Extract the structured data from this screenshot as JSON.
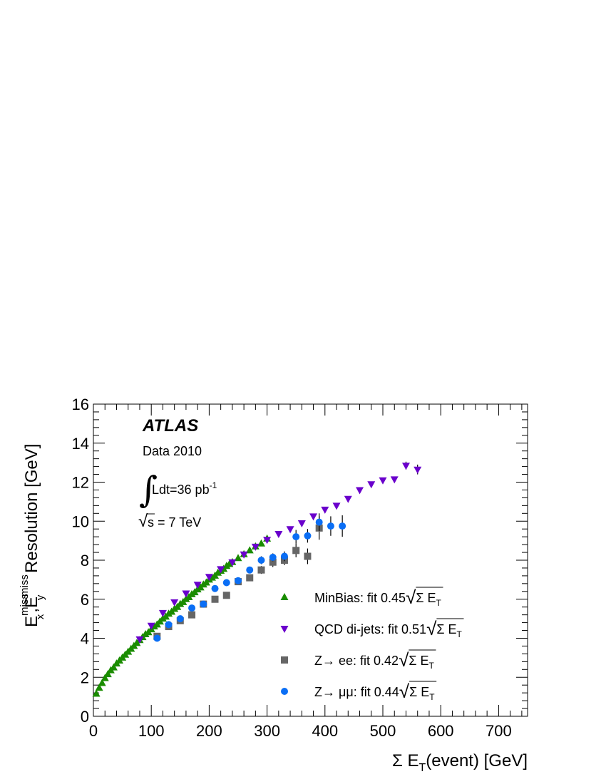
{
  "chart_data": {
    "type": "scatter",
    "xlim": [
      0,
      750
    ],
    "ylim": [
      0,
      16
    ],
    "x_ticks": [
      "0",
      "100",
      "200",
      "300",
      "400",
      "500",
      "600",
      "700"
    ],
    "y_ticks": [
      "0",
      "2",
      "4",
      "6",
      "8",
      "10",
      "12",
      "14",
      "16"
    ],
    "xlabel": {
      "pre": "Σ E",
      "sub": "T",
      "post": "(event)  [GeV]"
    },
    "ylabel": {
      "a": "E",
      "a_sup": "miss",
      "a_sub": "x",
      "comma": ",",
      "b": "E",
      "b_sup": "miss",
      "b_sub": "y",
      "post": " Resolution [GeV]"
    },
    "annotations": {
      "atlas": "ATLAS",
      "data_label": "Data 2010",
      "integral": "∫",
      "lumi": "Ldt=36 pb",
      "lumi_sup": "-1",
      "sqrt": "√",
      "energy": "s = 7 TeV"
    },
    "series": [
      {
        "name": "MinBias",
        "legend": {
          "text": "MinBias: fit 0.45",
          "sqrt": "√",
          "inner": "Σ E",
          "sub": "T"
        },
        "marker": "triangle-up",
        "color": "#1a8c00",
        "points": [
          [
            5,
            1.15
          ],
          [
            10,
            1.45
          ],
          [
            15,
            1.7
          ],
          [
            20,
            1.95
          ],
          [
            25,
            2.15
          ],
          [
            30,
            2.35
          ],
          [
            35,
            2.5
          ],
          [
            40,
            2.7
          ],
          [
            45,
            2.85
          ],
          [
            50,
            3.0
          ],
          [
            55,
            3.15
          ],
          [
            60,
            3.3
          ],
          [
            65,
            3.45
          ],
          [
            70,
            3.6
          ],
          [
            75,
            3.75
          ],
          [
            80,
            3.9
          ],
          [
            85,
            4.05
          ],
          [
            90,
            4.2
          ],
          [
            95,
            4.3
          ],
          [
            100,
            4.45
          ],
          [
            105,
            4.6
          ],
          [
            110,
            4.7
          ],
          [
            115,
            4.85
          ],
          [
            120,
            5.0
          ],
          [
            125,
            5.1
          ],
          [
            130,
            5.25
          ],
          [
            135,
            5.35
          ],
          [
            140,
            5.5
          ],
          [
            145,
            5.6
          ],
          [
            150,
            5.75
          ],
          [
            155,
            5.85
          ],
          [
            160,
            6.0
          ],
          [
            165,
            6.1
          ],
          [
            170,
            6.25
          ],
          [
            175,
            6.35
          ],
          [
            180,
            6.5
          ],
          [
            185,
            6.6
          ],
          [
            190,
            6.75
          ],
          [
            195,
            6.85
          ],
          [
            200,
            7.0
          ],
          [
            205,
            7.1
          ],
          [
            210,
            7.2
          ],
          [
            215,
            7.35
          ],
          [
            220,
            7.45
          ],
          [
            225,
            7.55
          ],
          [
            230,
            7.7
          ],
          [
            235,
            7.8
          ],
          [
            240,
            7.9
          ],
          [
            250,
            8.1
          ],
          [
            260,
            8.3
          ],
          [
            270,
            8.5
          ],
          [
            280,
            8.7
          ],
          [
            290,
            8.85
          ],
          [
            300,
            9.1
          ]
        ]
      },
      {
        "name": "QCD di-jets",
        "legend": {
          "text": "QCD di-jets: fit 0.51",
          "sqrt": "√",
          "inner": "Σ E",
          "sub": "T"
        },
        "marker": "triangle-down",
        "color": "#6a00cc",
        "points": [
          [
            80,
            3.95
          ],
          [
            100,
            4.65
          ],
          [
            120,
            5.3
          ],
          [
            140,
            5.85
          ],
          [
            160,
            6.3
          ],
          [
            180,
            6.75
          ],
          [
            200,
            7.15
          ],
          [
            220,
            7.55
          ],
          [
            240,
            7.9
          ],
          [
            260,
            8.3
          ],
          [
            280,
            8.7
          ],
          [
            300,
            9.05
          ],
          [
            320,
            9.35
          ],
          [
            340,
            9.6
          ],
          [
            360,
            9.9
          ],
          [
            380,
            10.25
          ],
          [
            400,
            10.6
          ],
          [
            420,
            10.8
          ],
          [
            440,
            11.15
          ],
          [
            460,
            11.6
          ],
          [
            480,
            11.9
          ],
          [
            500,
            12.1
          ],
          [
            520,
            12.15
          ],
          [
            540,
            12.85
          ],
          [
            560,
            12.65
          ]
        ],
        "errors": [
          0,
          0,
          0,
          0,
          0,
          0,
          0,
          0,
          0,
          0,
          0,
          0,
          0,
          0,
          0,
          0,
          0,
          0,
          0,
          0,
          0,
          0,
          0,
          0.2,
          0.25
        ]
      },
      {
        "name": "Z→ee",
        "legend": {
          "text": "Z→ ee: fit 0.42",
          "sqrt": "√",
          "inner": "Σ E",
          "sub": "T"
        },
        "marker": "square",
        "color": "#666666",
        "points": [
          [
            110,
            4.1
          ],
          [
            130,
            4.6
          ],
          [
            150,
            4.9
          ],
          [
            170,
            5.2
          ],
          [
            190,
            5.75
          ],
          [
            210,
            6.0
          ],
          [
            230,
            6.2
          ],
          [
            250,
            6.9
          ],
          [
            270,
            7.1
          ],
          [
            290,
            7.5
          ],
          [
            310,
            7.9
          ],
          [
            330,
            8.0
          ],
          [
            350,
            8.5
          ],
          [
            370,
            8.2
          ],
          [
            390,
            9.65
          ]
        ],
        "errors": [
          0.1,
          0.1,
          0.1,
          0.1,
          0.1,
          0.1,
          0.1,
          0.1,
          0.15,
          0.2,
          0.25,
          0.25,
          0.35,
          0.4,
          0.6
        ]
      },
      {
        "name": "Z→μμ",
        "legend": {
          "text": "Z→ μμ: fit 0.44",
          "sqrt": "√",
          "inner": "Σ E",
          "sub": "T"
        },
        "marker": "circle",
        "color": "#0a6ef5",
        "points": [
          [
            110,
            4.0
          ],
          [
            130,
            4.7
          ],
          [
            150,
            5.0
          ],
          [
            170,
            5.55
          ],
          [
            190,
            5.75
          ],
          [
            210,
            6.55
          ],
          [
            230,
            6.85
          ],
          [
            250,
            6.95
          ],
          [
            270,
            7.5
          ],
          [
            290,
            8.0
          ],
          [
            310,
            8.15
          ],
          [
            330,
            8.2
          ],
          [
            350,
            9.2
          ],
          [
            370,
            9.25
          ],
          [
            390,
            9.95
          ],
          [
            410,
            9.75
          ],
          [
            430,
            9.75
          ]
        ],
        "errors": [
          0.05,
          0.05,
          0.05,
          0.05,
          0.05,
          0.1,
          0.1,
          0.1,
          0.15,
          0.2,
          0.2,
          0.25,
          0.35,
          0.35,
          0.45,
          0.5,
          0.55
        ]
      }
    ]
  }
}
